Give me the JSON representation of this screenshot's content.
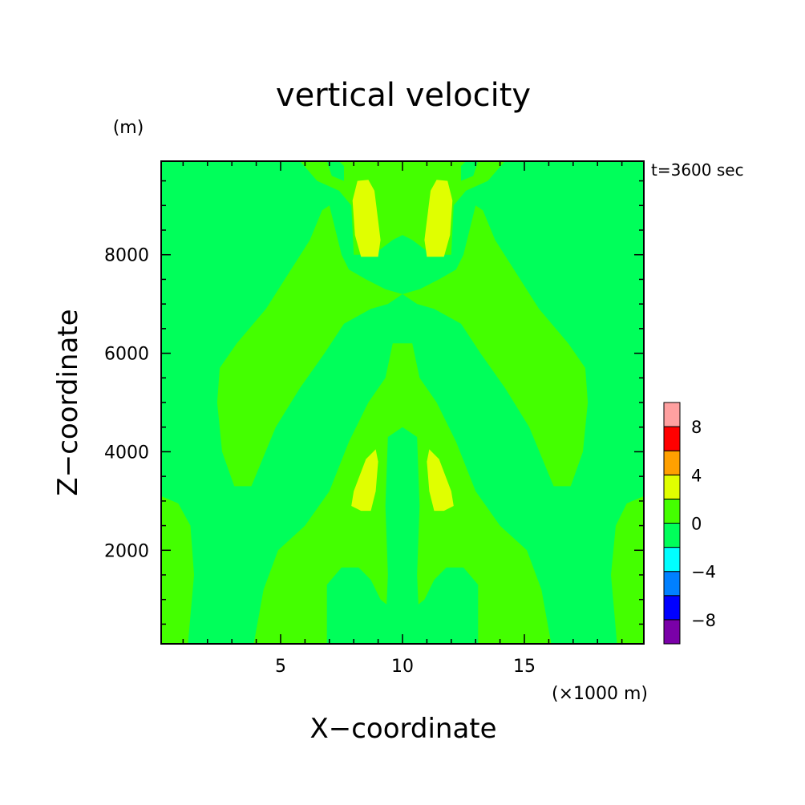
{
  "chart_data": {
    "type": "heatmap",
    "title": "vertical velocity",
    "xlabel": "X−coordinate",
    "ylabel": "Z−coordinate",
    "x_unit": "(×1000 m)",
    "y_unit": "(m)",
    "time_label": "t=3600 sec",
    "xlim": [
      0.1,
      19.9
    ],
    "ylim": [
      100,
      9900
    ],
    "x_ticks": [
      5,
      10,
      15
    ],
    "y_ticks": [
      2000,
      4000,
      6000,
      8000
    ],
    "colorbar": {
      "levels": [
        -10,
        -8,
        -6,
        -4,
        -2,
        0,
        2,
        4,
        6,
        8,
        10
      ],
      "tick_labels": [
        "−8",
        "−4",
        "0",
        "4",
        "8"
      ],
      "tick_values": [
        -8,
        -4,
        0,
        4,
        8
      ],
      "colors": [
        "#7a00a8",
        "#0000ff",
        "#0080ff",
        "#00ffff",
        "#00ff5a",
        "#44ff00",
        "#e0ff00",
        "#ffa000",
        "#ff0000",
        "#ffa0a0"
      ]
    },
    "regions": [
      {
        "level": "0 to 2",
        "points": [
          [
            0.1,
            3100
          ],
          [
            0.8,
            2950
          ],
          [
            1.3,
            2500
          ],
          [
            1.45,
            1500
          ],
          [
            1.2,
            100
          ],
          [
            0.1,
            100
          ]
        ]
      },
      {
        "level": "0 to 2",
        "points": [
          [
            19.9,
            3100
          ],
          [
            19.2,
            2950
          ],
          [
            18.75,
            2500
          ],
          [
            18.55,
            1500
          ],
          [
            18.8,
            100
          ],
          [
            19.9,
            100
          ]
        ]
      },
      {
        "level": "0 to 2",
        "points": [
          [
            3.9,
            100
          ],
          [
            4.3,
            1200
          ],
          [
            4.9,
            2000
          ],
          [
            6.0,
            2500
          ],
          [
            7.0,
            3200
          ],
          [
            7.8,
            4200
          ],
          [
            8.6,
            5000
          ],
          [
            9.3,
            5500
          ],
          [
            9.6,
            6200
          ],
          [
            10.4,
            6200
          ],
          [
            10.7,
            5500
          ],
          [
            11.4,
            5000
          ],
          [
            12.2,
            4200
          ],
          [
            13.0,
            3200
          ],
          [
            14.0,
            2500
          ],
          [
            15.1,
            2000
          ],
          [
            15.7,
            1200
          ],
          [
            16.1,
            100
          ],
          [
            13.1,
            100
          ],
          [
            13.1,
            1300
          ],
          [
            12.5,
            1650
          ],
          [
            11.8,
            1650
          ],
          [
            11.3,
            1400
          ],
          [
            10.9,
            1000
          ],
          [
            10.65,
            900
          ],
          [
            10.6,
            1500
          ],
          [
            10.7,
            2900
          ],
          [
            10.6,
            4300
          ],
          [
            10.0,
            4500
          ],
          [
            9.4,
            4300
          ],
          [
            9.3,
            2900
          ],
          [
            9.4,
            1500
          ],
          [
            9.35,
            900
          ],
          [
            9.1,
            1000
          ],
          [
            8.7,
            1400
          ],
          [
            8.2,
            1650
          ],
          [
            7.5,
            1650
          ],
          [
            6.9,
            1300
          ],
          [
            6.9,
            100
          ]
        ]
      },
      {
        "level": "0 to 2",
        "points": [
          [
            2.4,
            5000
          ],
          [
            2.5,
            5700
          ],
          [
            3.2,
            6200
          ],
          [
            4.4,
            6900
          ],
          [
            5.3,
            7600
          ],
          [
            6.2,
            8300
          ],
          [
            6.7,
            8900
          ],
          [
            7.0,
            9000
          ],
          [
            7.2,
            8600
          ],
          [
            7.5,
            8000
          ],
          [
            7.8,
            7700
          ],
          [
            8.5,
            7500
          ],
          [
            9.3,
            7300
          ],
          [
            10.0,
            7200
          ],
          [
            10.7,
            7300
          ],
          [
            11.5,
            7500
          ],
          [
            12.2,
            7700
          ],
          [
            12.5,
            8000
          ],
          [
            12.8,
            8600
          ],
          [
            13.0,
            9000
          ],
          [
            13.3,
            8900
          ],
          [
            13.8,
            8300
          ],
          [
            14.7,
            7600
          ],
          [
            15.6,
            6900
          ],
          [
            16.8,
            6200
          ],
          [
            17.5,
            5700
          ],
          [
            17.6,
            5000
          ],
          [
            17.4,
            4000
          ],
          [
            16.9,
            3300
          ],
          [
            16.2,
            3300
          ],
          [
            15.2,
            4500
          ],
          [
            14.2,
            5300
          ],
          [
            13.2,
            6000
          ],
          [
            12.4,
            6600
          ],
          [
            11.3,
            6900
          ],
          [
            10.6,
            7000
          ],
          [
            10.0,
            7200
          ],
          [
            9.4,
            7000
          ],
          [
            8.7,
            6900
          ],
          [
            7.6,
            6600
          ],
          [
            6.8,
            6000
          ],
          [
            5.8,
            5300
          ],
          [
            4.8,
            4500
          ],
          [
            3.8,
            3300
          ],
          [
            3.1,
            3300
          ],
          [
            2.6,
            4000
          ]
        ]
      },
      {
        "level": "0 to 2",
        "points": [
          [
            5.8,
            9900
          ],
          [
            6.5,
            9500
          ],
          [
            7.4,
            9300
          ],
          [
            7.9,
            9000
          ],
          [
            8.0,
            8000
          ],
          [
            8.8,
            8000
          ],
          [
            9.6,
            8300
          ],
          [
            10.0,
            8400
          ],
          [
            10.4,
            8300
          ],
          [
            11.2,
            8000
          ],
          [
            12.0,
            8000
          ],
          [
            12.1,
            9000
          ],
          [
            12.6,
            9300
          ],
          [
            13.5,
            9500
          ],
          [
            14.2,
            9900
          ],
          [
            13.1,
            9900
          ],
          [
            12.9,
            9600
          ],
          [
            12.4,
            9500
          ],
          [
            12.4,
            9800
          ],
          [
            12.6,
            9900
          ],
          [
            7.4,
            9900
          ],
          [
            7.6,
            9800
          ],
          [
            7.6,
            9500
          ],
          [
            7.1,
            9600
          ],
          [
            6.9,
            9900
          ]
        ]
      },
      {
        "level": "2 to 4",
        "points": [
          [
            8.15,
            9500
          ],
          [
            8.6,
            9520
          ],
          [
            8.85,
            9300
          ],
          [
            9.1,
            8300
          ],
          [
            9.0,
            7960
          ],
          [
            8.3,
            7960
          ],
          [
            8.05,
            8400
          ],
          [
            7.95,
            9100
          ]
        ]
      },
      {
        "level": "2 to 4",
        "points": [
          [
            11.85,
            9500
          ],
          [
            11.4,
            9520
          ],
          [
            11.15,
            9300
          ],
          [
            10.9,
            8300
          ],
          [
            11.0,
            7960
          ],
          [
            11.7,
            7960
          ],
          [
            11.95,
            8400
          ],
          [
            12.05,
            9100
          ]
        ]
      },
      {
        "level": "2 to 4",
        "points": [
          [
            8.3,
            2800
          ],
          [
            8.7,
            2800
          ],
          [
            8.9,
            3200
          ],
          [
            9.0,
            3800
          ],
          [
            8.9,
            4050
          ],
          [
            8.5,
            3850
          ],
          [
            8.0,
            3200
          ],
          [
            7.9,
            2900
          ]
        ]
      },
      {
        "level": "2 to 4",
        "points": [
          [
            11.7,
            2800
          ],
          [
            11.3,
            2800
          ],
          [
            11.1,
            3200
          ],
          [
            11.0,
            3800
          ],
          [
            11.1,
            4050
          ],
          [
            11.5,
            3850
          ],
          [
            12.0,
            3200
          ],
          [
            12.1,
            2900
          ]
        ]
      }
    ]
  }
}
